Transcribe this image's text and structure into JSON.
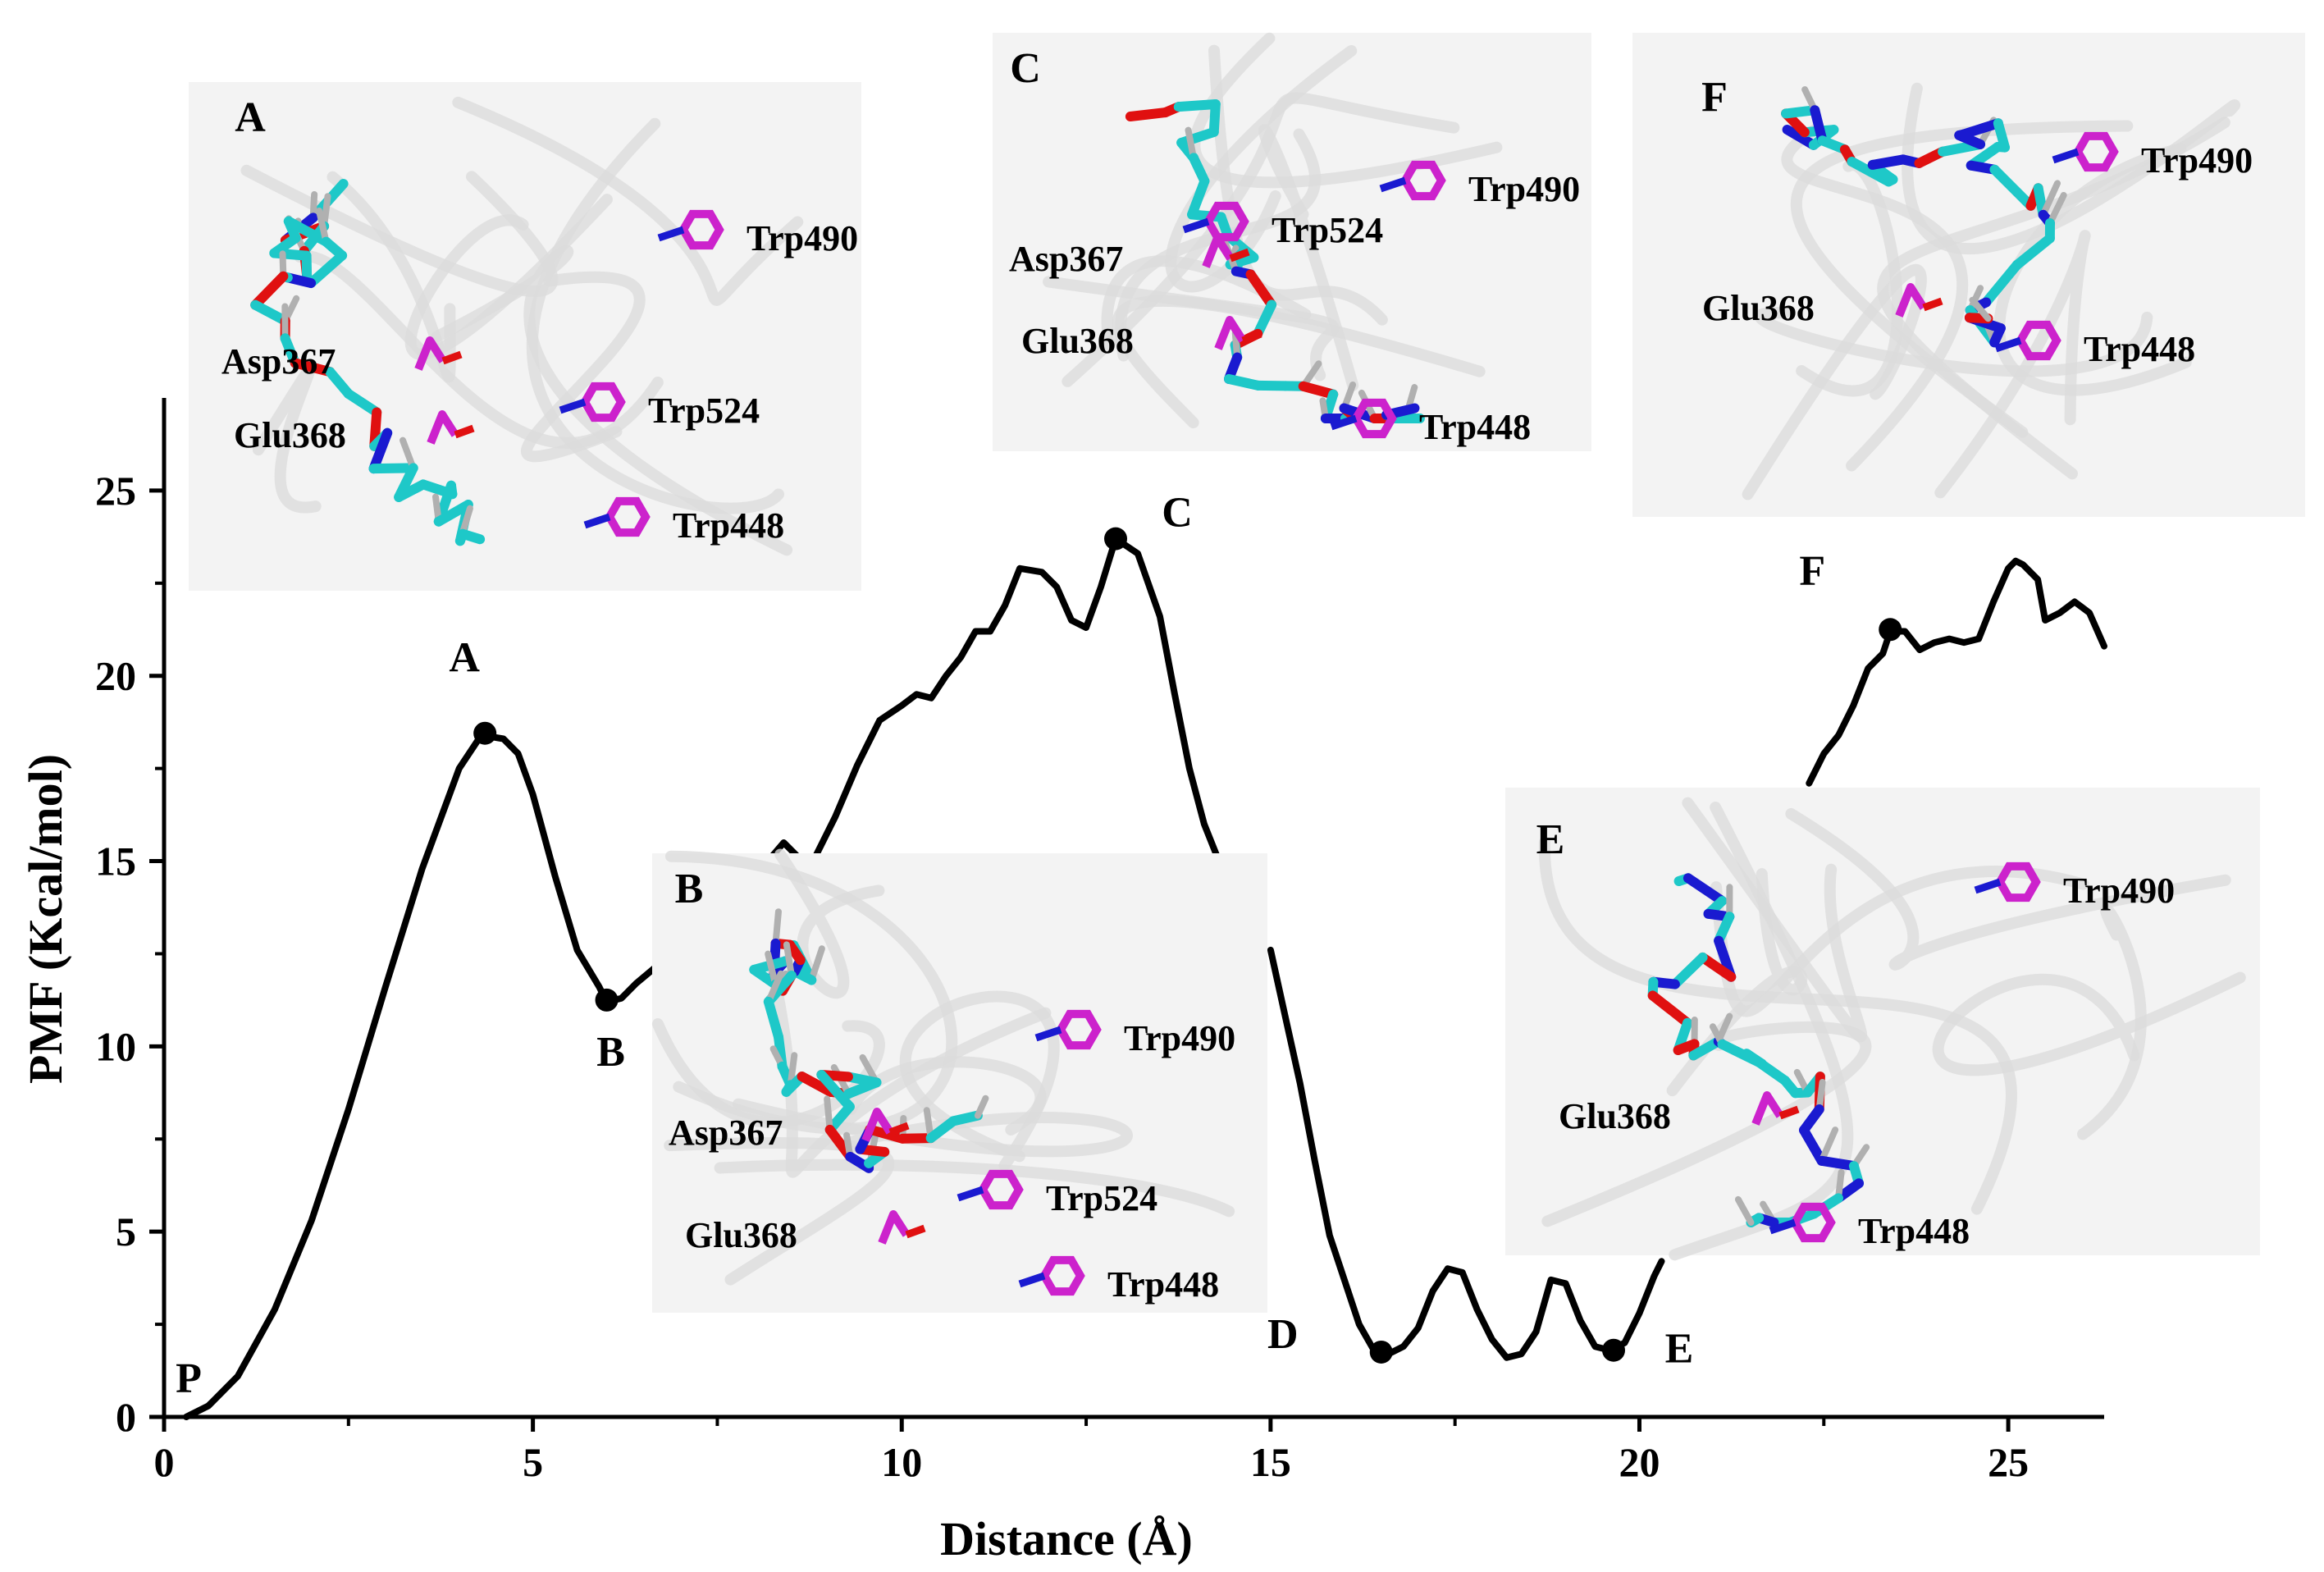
{
  "chart_data": {
    "type": "line",
    "xlabel": "Distance (Å)",
    "ylabel": "PMF (Kcal/mol)",
    "xlim": [
      0,
      26.3
    ],
    "ylim": [
      0,
      27.5
    ],
    "xticks": [
      "0",
      "5",
      "10",
      "15",
      "20",
      "25"
    ],
    "yticks": [
      "0",
      "5",
      "10",
      "15",
      "20",
      "25"
    ],
    "grid": false,
    "series": [
      {
        "segments": [
          [
            [
              0.3,
              0.0
            ],
            [
              0.6,
              0.3
            ],
            [
              1.0,
              1.1
            ],
            [
              1.5,
              2.9
            ],
            [
              2.0,
              5.3
            ],
            [
              2.5,
              8.3
            ],
            [
              3.0,
              11.6
            ],
            [
              3.5,
              14.8
            ],
            [
              4.0,
              17.5
            ],
            [
              4.3,
              18.4
            ],
            [
              4.6,
              18.3
            ],
            [
              4.8,
              17.9
            ],
            [
              5.0,
              16.8
            ],
            [
              5.3,
              14.6
            ],
            [
              5.6,
              12.6
            ],
            [
              5.9,
              11.6
            ],
            [
              6.0,
              11.2
            ],
            [
              6.2,
              11.3
            ],
            [
              6.4,
              11.7
            ],
            [
              6.7,
              12.2
            ]
          ],
          [
            [
              7.8,
              14.7
            ],
            [
              8.1,
              14.8
            ],
            [
              8.4,
              15.5
            ],
            [
              8.6,
              15.1
            ],
            [
              8.8,
              15.0
            ],
            [
              9.1,
              16.2
            ],
            [
              9.4,
              17.6
            ],
            [
              9.7,
              18.8
            ],
            [
              10.0,
              19.2
            ],
            [
              10.2,
              19.5
            ],
            [
              10.4,
              19.4
            ],
            [
              10.6,
              20.0
            ],
            [
              10.8,
              20.5
            ],
            [
              11.0,
              21.2
            ],
            [
              11.2,
              21.2
            ],
            [
              11.4,
              21.9
            ],
            [
              11.6,
              22.9
            ],
            [
              11.9,
              22.8
            ],
            [
              12.1,
              22.4
            ],
            [
              12.3,
              21.5
            ],
            [
              12.5,
              21.3
            ],
            [
              12.7,
              22.4
            ],
            [
              12.9,
              23.7
            ],
            [
              13.2,
              23.3
            ],
            [
              13.5,
              21.6
            ],
            [
              13.7,
              19.5
            ],
            [
              13.9,
              17.5
            ],
            [
              14.1,
              16.0
            ],
            [
              14.3,
              15.0
            ]
          ],
          [
            [
              15.0,
              12.6
            ],
            [
              15.2,
              10.8
            ],
            [
              15.4,
              9.0
            ],
            [
              15.6,
              6.9
            ],
            [
              15.8,
              4.9
            ],
            [
              16.0,
              3.7
            ],
            [
              16.2,
              2.5
            ],
            [
              16.4,
              1.8
            ],
            [
              16.6,
              1.7
            ],
            [
              16.8,
              1.9
            ],
            [
              17.0,
              2.4
            ],
            [
              17.2,
              3.4
            ],
            [
              17.4,
              4.0
            ],
            [
              17.6,
              3.9
            ],
            [
              17.8,
              2.9
            ],
            [
              18.0,
              2.1
            ],
            [
              18.2,
              1.6
            ],
            [
              18.4,
              1.7
            ],
            [
              18.6,
              2.3
            ],
            [
              18.8,
              3.7
            ],
            [
              19.0,
              3.6
            ],
            [
              19.2,
              2.6
            ],
            [
              19.4,
              1.9
            ],
            [
              19.6,
              1.8
            ],
            [
              19.8,
              2.0
            ],
            [
              20.0,
              2.8
            ],
            [
              20.2,
              3.8
            ],
            [
              20.3,
              4.2
            ]
          ],
          [
            [
              22.3,
              17.1
            ],
            [
              22.5,
              17.9
            ],
            [
              22.7,
              18.4
            ],
            [
              22.9,
              19.2
            ],
            [
              23.1,
              20.2
            ],
            [
              23.3,
              20.6
            ],
            [
              23.4,
              21.2
            ],
            [
              23.6,
              21.2
            ],
            [
              23.8,
              20.7
            ],
            [
              24.0,
              20.9
            ],
            [
              24.2,
              21.0
            ],
            [
              24.4,
              20.9
            ],
            [
              24.6,
              21.0
            ],
            [
              24.8,
              22.0
            ],
            [
              25.0,
              22.9
            ],
            [
              25.1,
              23.1
            ],
            [
              25.2,
              23.0
            ],
            [
              25.4,
              22.6
            ],
            [
              25.5,
              21.5
            ],
            [
              25.7,
              21.7
            ],
            [
              25.9,
              22.0
            ],
            [
              26.1,
              21.7
            ],
            [
              26.3,
              20.8
            ]
          ]
        ]
      }
    ],
    "points": [
      {
        "label": "P",
        "x": 0.0,
        "y": 0.0,
        "marker": false
      },
      {
        "label": "A",
        "x": 4.35,
        "y": 18.45,
        "marker": true
      },
      {
        "label": "B",
        "x": 6.0,
        "y": 11.25,
        "marker": true
      },
      {
        "label": "C",
        "x": 12.9,
        "y": 23.7,
        "marker": true
      },
      {
        "label": "D",
        "x": 16.5,
        "y": 1.75,
        "marker": true
      },
      {
        "label": "E",
        "x": 19.65,
        "y": 1.8,
        "marker": true
      },
      {
        "label": "F",
        "x": 23.4,
        "y": 21.25,
        "marker": true
      }
    ],
    "line_color": "#000000"
  },
  "insets": [
    {
      "letter": "A",
      "residues": [
        "Trp490",
        "Asp367",
        "Trp524",
        "Glu368",
        "Trp448"
      ]
    },
    {
      "letter": "C",
      "residues": [
        "Trp490",
        "Trp524",
        "Asp367",
        "Glu368",
        "Trp448"
      ]
    },
    {
      "letter": "F",
      "residues": [
        "Trp490",
        "Glu368",
        "Trp448"
      ]
    },
    {
      "letter": "B",
      "residues": [
        "Trp490",
        "Asp367",
        "Trp524",
        "Glu368",
        "Trp448"
      ]
    },
    {
      "letter": "E",
      "residues": [
        "Trp490",
        "Glu368",
        "Trp448"
      ]
    }
  ],
  "colors": {
    "ligand_carbon": "#1ec8c8",
    "oxygen": "#e01010",
    "nitrogen": "#1a1ad0",
    "hydrogen": "#b0b0b0",
    "residue": "#cc22cc",
    "protein_ribbon": "#dcdcdc",
    "inset_background": "#f3f3f3",
    "hbond": "#22cc44"
  }
}
